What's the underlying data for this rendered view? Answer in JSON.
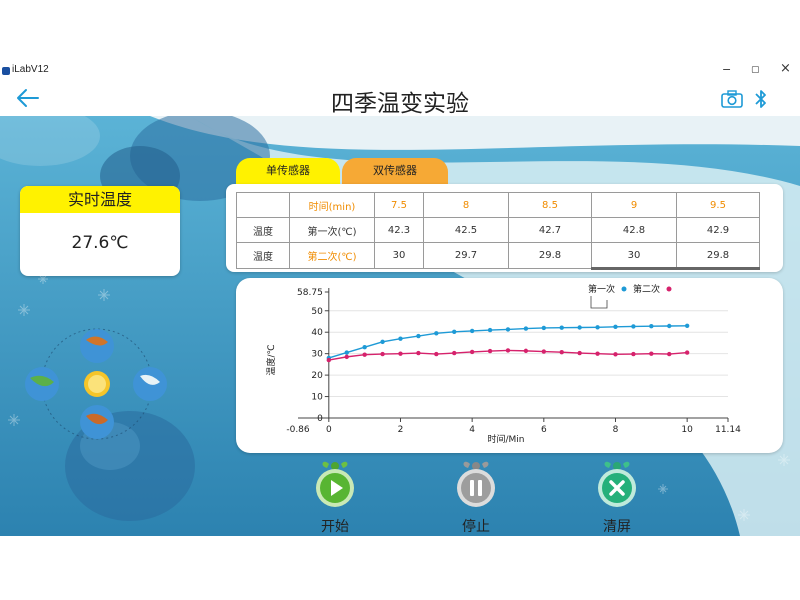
{
  "window": {
    "app_name": "iLabV12",
    "minimize": "−",
    "maximize": "▢",
    "close": "×"
  },
  "header": {
    "title": "四季温变实验",
    "back_icon": "arrow-left-icon",
    "camera_icon": "camera-icon",
    "bluetooth_icon": "bluetooth-icon"
  },
  "realtime": {
    "title": "实时温度",
    "value": "27.6℃"
  },
  "tabs": [
    {
      "label": "单传感器",
      "color": "#fff200"
    },
    {
      "label": "双传感器",
      "color": "#f6a935"
    }
  ],
  "table": {
    "header": [
      "",
      "时间(min)",
      "7.5",
      "8",
      "8.5",
      "9",
      "9.5"
    ],
    "rows": [
      [
        "温度",
        "第一次(℃)",
        "42.3",
        "42.5",
        "42.7",
        "42.8",
        "42.9"
      ],
      [
        "温度",
        "第二次(℃)",
        "30",
        "29.7",
        "29.8",
        "30",
        "29.8"
      ]
    ]
  },
  "chart_data": {
    "type": "line",
    "ylabel": "温度/℃",
    "xlabel": "时间/Min",
    "xlim": [
      -0.86,
      11.14
    ],
    "ylim": [
      0,
      58.75
    ],
    "x_ticks": [
      "-0.86",
      "0",
      "2",
      "4",
      "6",
      "8",
      "10",
      "11.14"
    ],
    "y_ticks": [
      "0",
      "10",
      "20",
      "30",
      "40",
      "50",
      "58.75"
    ],
    "legend": "top-right",
    "series": [
      {
        "name": "第一次",
        "color": "#1e9ad6",
        "x": [
          0,
          0.5,
          1,
          1.5,
          2,
          2.5,
          3,
          3.5,
          4,
          4.5,
          5,
          5.5,
          6,
          6.5,
          7,
          7.5,
          8,
          8.5,
          9,
          9.5,
          10
        ],
        "y": [
          28,
          30.5,
          33,
          35.5,
          37,
          38.2,
          39.5,
          40.2,
          40.6,
          41,
          41.3,
          41.7,
          42,
          42.1,
          42.2,
          42.3,
          42.5,
          42.7,
          42.8,
          42.9,
          43
        ]
      },
      {
        "name": "第二次",
        "color": "#d6226c",
        "x": [
          0,
          0.5,
          1,
          1.5,
          2,
          2.5,
          3,
          3.5,
          4,
          4.5,
          5,
          5.5,
          6,
          6.5,
          7,
          7.5,
          8,
          8.5,
          9,
          9.5,
          10
        ],
        "y": [
          27,
          28.5,
          29.5,
          29.8,
          30,
          30.3,
          29.8,
          30.3,
          30.8,
          31.2,
          31.5,
          31.3,
          31,
          30.7,
          30.3,
          30,
          29.7,
          29.8,
          30,
          29.8,
          30.5
        ]
      }
    ]
  },
  "controls": [
    {
      "label": "开始",
      "icon": "play-icon"
    },
    {
      "label": "停止",
      "icon": "pause-icon"
    },
    {
      "label": "清屏",
      "icon": "clear-icon"
    }
  ]
}
